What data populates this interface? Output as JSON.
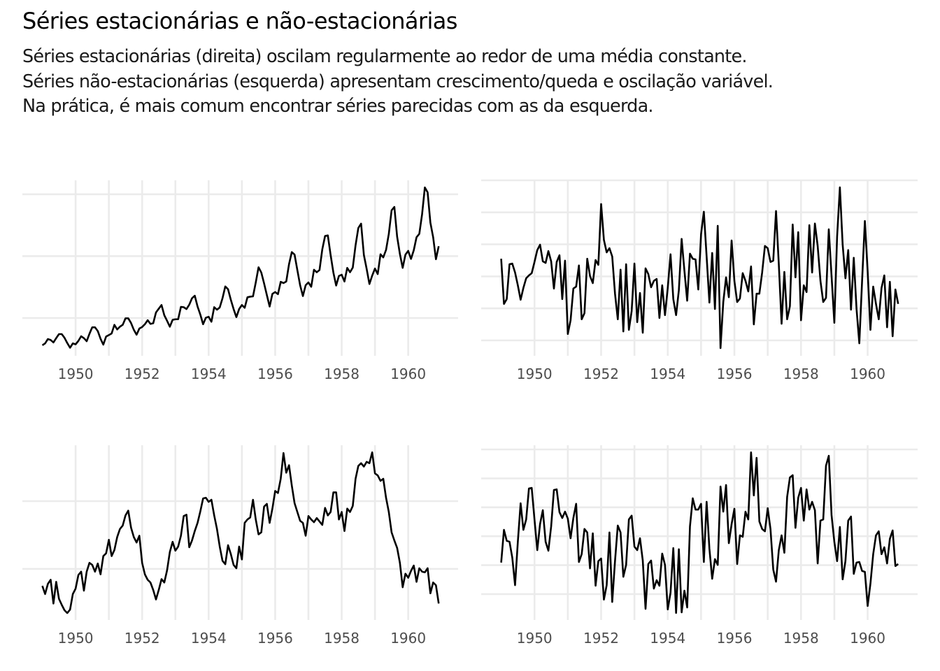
{
  "header": {
    "title": "Séries estacionárias e não-estacionárias",
    "subtitle_lines": [
      "Séries estacionárias (direita) oscilam regularmente ao redor de uma média constante.",
      "Séries não-estacionárias (esquerda) apresentam crescimento/queda e oscilação variável.",
      "Na prática, é mais comum encontrar séries parecidas com as da esquerda."
    ]
  },
  "colors": {
    "line": "#000000",
    "grid": "#ebebeb",
    "tick_text": "#4d4d4d",
    "background": "#ffffff"
  },
  "chart_data": [
    {
      "type": "line",
      "position": "top-left",
      "title": "",
      "xlabel": "",
      "ylabel": "",
      "x_start": 1949,
      "frequency": 12,
      "x_ticks": [
        "1950",
        "1952",
        "1954",
        "1956",
        "1958",
        "1960"
      ],
      "x_grid": [
        1950,
        1951,
        1952,
        1953,
        1954,
        1955,
        1956,
        1957,
        1958,
        1959,
        1960
      ],
      "xlim": [
        1948.4,
        1961.5
      ],
      "y_grid": [
        200,
        400,
        600
      ],
      "ylim": [
        78,
        645
      ],
      "grid": true,
      "legend": "none",
      "values": [
        112,
        118,
        132,
        129,
        121,
        135,
        148,
        148,
        136,
        119,
        104,
        118,
        115,
        126,
        141,
        135,
        125,
        149,
        170,
        170,
        158,
        133,
        114,
        140,
        145,
        150,
        178,
        163,
        172,
        178,
        199,
        199,
        184,
        162,
        146,
        166,
        171,
        180,
        193,
        181,
        183,
        218,
        230,
        242,
        209,
        191,
        172,
        194,
        196,
        196,
        236,
        235,
        229,
        243,
        264,
        272,
        237,
        211,
        180,
        201,
        204,
        188,
        235,
        227,
        234,
        264,
        302,
        293,
        259,
        229,
        203,
        229,
        242,
        233,
        267,
        269,
        270,
        315,
        364,
        347,
        312,
        274,
        237,
        278,
        284,
        277,
        317,
        313,
        318,
        374,
        413,
        405,
        355,
        306,
        271,
        306,
        315,
        301,
        356,
        348,
        355,
        422,
        465,
        467,
        404,
        347,
        305,
        336,
        340,
        318,
        362,
        348,
        363,
        435,
        491,
        505,
        404,
        359,
        310,
        337,
        360,
        342,
        406,
        396,
        420,
        472,
        548,
        559,
        463,
        407,
        362,
        405,
        417,
        391,
        419,
        461,
        472,
        535,
        622,
        606,
        508,
        461,
        390,
        432
      ]
    },
    {
      "type": "line",
      "position": "top-right",
      "title": "",
      "xlabel": "",
      "ylabel": "",
      "x_start": 1949,
      "frequency": 12,
      "x_ticks": [
        "1950",
        "1952",
        "1954",
        "1956",
        "1958",
        "1960"
      ],
      "x_grid": [
        1950,
        1951,
        1952,
        1953,
        1954,
        1955,
        1956,
        1957,
        1958,
        1959,
        1960
      ],
      "xlim": [
        1948.4,
        1961.5
      ],
      "y_grid": [
        0,
        1,
        2,
        3,
        4,
        5
      ],
      "ylim": [
        -0.48,
        5.0
      ],
      "grid": true,
      "legend": "none",
      "values": [
        2.55,
        1.14,
        1.29,
        2.38,
        2.4,
        2.12,
        1.72,
        1.27,
        1.64,
        1.94,
        2.03,
        2.1,
        2.45,
        2.82,
        2.99,
        2.47,
        2.42,
        2.79,
        2.47,
        1.62,
        2.45,
        2.66,
        1.29,
        2.49,
        0.2,
        0.63,
        1.62,
        1.68,
        2.34,
        0.66,
        0.85,
        2.55,
        2.01,
        1.79,
        2.51,
        2.36,
        4.26,
        3.14,
        2.75,
        2.88,
        2.62,
        1.46,
        0.66,
        2.21,
        0.28,
        2.38,
        0.33,
        0.92,
        2.4,
        0.57,
        1.48,
        0.24,
        2.25,
        2.07,
        1.66,
        1.86,
        1.92,
        0.7,
        1.72,
        0.79,
        1.64,
        2.69,
        1.29,
        0.79,
        1.57,
        3.17,
        2.18,
        1.24,
        2.71,
        2.55,
        2.53,
        1.59,
        3.32,
        4.02,
        2.62,
        1.18,
        2.73,
        0.98,
        3.58,
        -0.24,
        1.2,
        1.97,
        1.35,
        3.12,
        1.86,
        1.2,
        1.31,
        2.1,
        1.86,
        1.53,
        2.31,
        0.5,
        1.46,
        1.46,
        2.12,
        2.95,
        2.88,
        2.45,
        2.49,
        4.04,
        2.38,
        0.52,
        2.14,
        0.66,
        1.07,
        3.62,
        1.97,
        3.38,
        0.63,
        1.72,
        1.51,
        3.6,
        2.12,
        3.65,
        2.95,
        1.86,
        1.2,
        1.33,
        3.47,
        2.01,
        0.55,
        3.25,
        4.78,
        2.99,
        1.94,
        2.82,
        0.96,
        2.58,
        0.98,
        -0.09,
        1.86,
        3.73,
        2.16,
        0.33,
        1.68,
        1.14,
        0.66,
        1.64,
        2.03,
        0.41,
        1.83,
        0.13,
        1.59,
        1.14
      ]
    },
    {
      "type": "line",
      "position": "bottom-left",
      "title": "",
      "xlabel": "",
      "ylabel": "",
      "x_start": 1949,
      "frequency": 12,
      "x_ticks": [
        "1950",
        "1952",
        "1954",
        "1956",
        "1958",
        "1960"
      ],
      "x_grid": [
        1950,
        1951,
        1952,
        1953,
        1954,
        1955,
        1956,
        1957,
        1958,
        1959,
        1960
      ],
      "xlim": [
        1948.4,
        1961.5
      ],
      "y_grid": [
        0,
        1
      ],
      "ylim": [
        -0.753,
        1.825
      ],
      "grid": true,
      "legend": "none",
      "values": [
        -0.25,
        -0.37,
        -0.22,
        -0.16,
        -0.51,
        -0.19,
        -0.44,
        -0.53,
        -0.61,
        -0.65,
        -0.6,
        -0.37,
        -0.29,
        -0.09,
        -0.04,
        -0.32,
        -0.04,
        0.09,
        0.06,
        -0.04,
        0.08,
        -0.08,
        0.19,
        0.23,
        0.43,
        0.19,
        0.28,
        0.47,
        0.59,
        0.64,
        0.79,
        0.86,
        0.61,
        0.47,
        0.39,
        0.49,
        0.09,
        -0.08,
        -0.16,
        -0.2,
        -0.31,
        -0.45,
        -0.31,
        -0.15,
        -0.2,
        -0.02,
        0.25,
        0.4,
        0.27,
        0.33,
        0.49,
        0.78,
        0.8,
        0.32,
        0.42,
        0.56,
        0.68,
        0.85,
        1.04,
        1.05,
        0.99,
        1.02,
        0.79,
        0.59,
        0.33,
        0.12,
        0.07,
        0.35,
        0.22,
        0.06,
        0.01,
        0.33,
        0.14,
        0.68,
        0.73,
        0.76,
        1.02,
        0.73,
        0.51,
        0.54,
        0.92,
        0.96,
        0.68,
        0.89,
        1.15,
        1.12,
        1.33,
        1.71,
        1.42,
        1.53,
        1.23,
        0.97,
        0.84,
        0.71,
        0.68,
        0.49,
        0.78,
        0.73,
        0.69,
        0.75,
        0.7,
        0.65,
        0.9,
        0.79,
        0.84,
        1.13,
        1.13,
        0.73,
        0.84,
        0.56,
        0.89,
        0.84,
        0.93,
        1.33,
        1.52,
        1.56,
        1.51,
        1.58,
        1.56,
        1.72,
        1.41,
        1.38,
        1.3,
        1.33,
        1.05,
        0.84,
        0.54,
        0.42,
        0.31,
        0.09,
        -0.27,
        -0.07,
        -0.13,
        -0.03,
        0.05,
        -0.19,
        0.01,
        -0.04,
        -0.05,
        0.01,
        -0.36,
        -0.2,
        -0.24,
        -0.51
      ]
    },
    {
      "type": "line",
      "position": "bottom-right",
      "title": "",
      "xlabel": "",
      "ylabel": "",
      "x_start": 1949,
      "frequency": 12,
      "x_ticks": [
        "1950",
        "1952",
        "1954",
        "1956",
        "1958",
        "1960"
      ],
      "x_grid": [
        1950,
        1951,
        1952,
        1953,
        1954,
        1955,
        1956,
        1957,
        1958,
        1959,
        1960
      ],
      "xlim": [
        1948.4,
        1961.5
      ],
      "y_grid": [
        0,
        1,
        2,
        3,
        4,
        5
      ],
      "ylim": [
        -0.894,
        5.145
      ],
      "grid": true,
      "legend": "none",
      "values": [
        1.09,
        2.22,
        1.84,
        1.81,
        1.26,
        0.31,
        1.81,
        3.14,
        2.22,
        2.58,
        3.65,
        3.67,
        2.58,
        1.52,
        2.42,
        2.9,
        1.81,
        1.5,
        2.34,
        3.6,
        3.62,
        2.83,
        2.63,
        2.85,
        2.61,
        1.93,
        2.63,
        3.12,
        1.11,
        1.38,
        2.25,
        2.13,
        0.89,
        2.1,
        0.29,
        1.14,
        1.23,
        -0.19,
        0.31,
        2.13,
        -0.27,
        1.14,
        2.37,
        2.13,
        0.6,
        1.01,
        2.58,
        2.71,
        1.64,
        1.52,
        1.93,
        1.16,
        -0.51,
        1.04,
        1.16,
        0.19,
        0.48,
        0.29,
        1.4,
        1.01,
        -0.53,
        0.05,
        1.59,
        -0.65,
        1.55,
        -0.63,
        0.12,
        -0.46,
        2.34,
        3.31,
        2.92,
        2.92,
        3.12,
        1.11,
        3.19,
        1.57,
        0.53,
        1.21,
        1.01,
        3.72,
        2.85,
        3.77,
        1.76,
        2.42,
        2.95,
        1.04,
        2.03,
        1.98,
        2.85,
        2.58,
        4.9,
        3.41,
        4.71,
        2.51,
        2.25,
        2.17,
        2.97,
        2.25,
        0.85,
        0.43,
        1.52,
        2.03,
        1.43,
        3.36,
        4.03,
        4.11,
        2.29,
        3.33,
        3.67,
        2.54,
        3.62,
        2.92,
        3.19,
        2.9,
        1.06,
        2.54,
        2.58,
        4.44,
        4.78,
        2.73,
        1.81,
        1.14,
        2.32,
        0.51,
        1.14,
        2.54,
        2.68,
        0.7,
        1.09,
        1.11,
        0.8,
        0.77,
        -0.41,
        0.36,
        1.38,
        2.03,
        2.17,
        1.38,
        1.62,
        1.06,
        1.91,
        2.2,
        0.97,
        1.04
      ]
    }
  ]
}
